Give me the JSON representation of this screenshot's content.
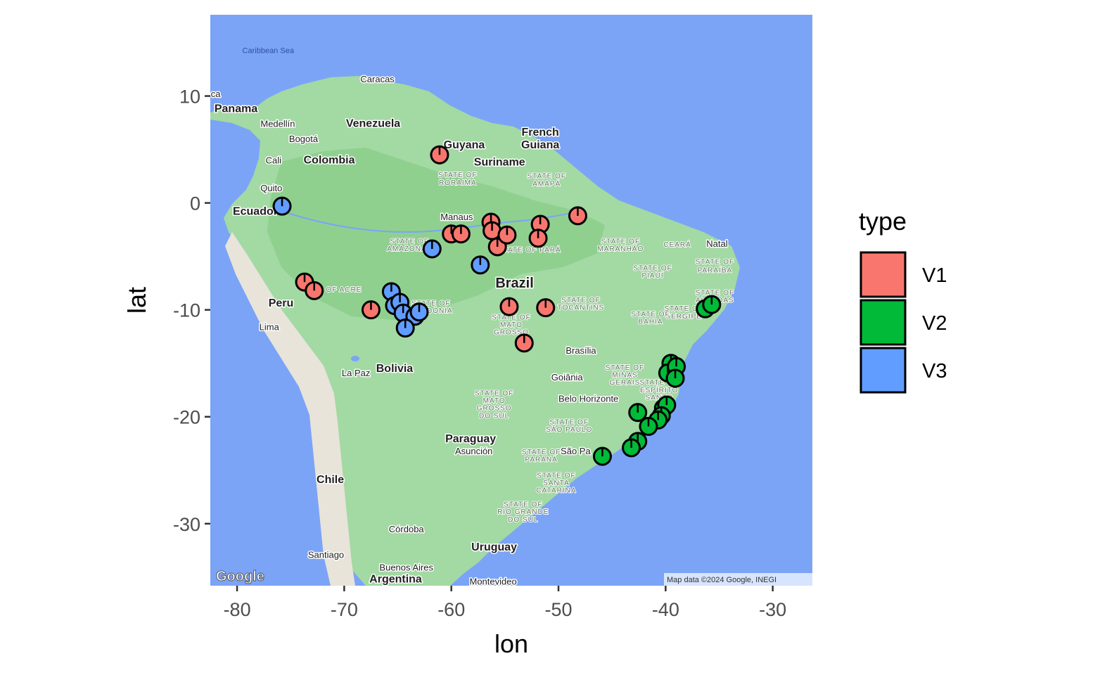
{
  "chart_data": {
    "type": "scatter",
    "subtype": "pie-markers-on-map",
    "xlabel": "lon",
    "ylabel": "lat",
    "xlim": [
      -82.5,
      -26.3
    ],
    "ylim": [
      -35.8,
      17.6
    ],
    "x_ticks": [
      -80,
      -70,
      -60,
      -50,
      -40,
      -30
    ],
    "y_ticks": [
      10,
      0,
      -10,
      -20,
      -30
    ],
    "legend": {
      "title": "type",
      "position": "right",
      "entries": [
        {
          "label": "V1",
          "color": "#F8766D"
        },
        {
          "label": "V2",
          "color": "#00BA38"
        },
        {
          "label": "V3",
          "color": "#619CFF"
        }
      ]
    },
    "points": [
      {
        "lon": -75.8,
        "lat": -0.3,
        "dominant": "V3"
      },
      {
        "lon": -61.1,
        "lat": 4.5,
        "dominant": "V1"
      },
      {
        "lon": -60.0,
        "lat": -2.9,
        "dominant": "V1"
      },
      {
        "lon": -59.1,
        "lat": -2.9,
        "dominant": "V1"
      },
      {
        "lon": -56.3,
        "lat": -1.8,
        "dominant": "V1"
      },
      {
        "lon": -56.2,
        "lat": -2.6,
        "dominant": "V1"
      },
      {
        "lon": -55.7,
        "lat": -4.1,
        "dominant": "V1"
      },
      {
        "lon": -54.8,
        "lat": -3.0,
        "dominant": "V1"
      },
      {
        "lon": -51.7,
        "lat": -2.0,
        "dominant": "V1"
      },
      {
        "lon": -51.9,
        "lat": -3.3,
        "dominant": "V1"
      },
      {
        "lon": -48.2,
        "lat": -1.2,
        "dominant": "V1"
      },
      {
        "lon": -61.8,
        "lat": -4.3,
        "dominant": "V3"
      },
      {
        "lon": -57.3,
        "lat": -5.8,
        "dominant": "V3"
      },
      {
        "lon": -73.7,
        "lat": -7.4,
        "dominant": "V1"
      },
      {
        "lon": -72.8,
        "lat": -8.2,
        "dominant": "V1"
      },
      {
        "lon": -67.5,
        "lat": -10.0,
        "dominant": "V1"
      },
      {
        "lon": -65.6,
        "lat": -8.3,
        "dominant": "V3"
      },
      {
        "lon": -65.3,
        "lat": -9.6,
        "dominant": "V3"
      },
      {
        "lon": -64.8,
        "lat": -9.3,
        "dominant": "V3"
      },
      {
        "lon": -64.5,
        "lat": -10.3,
        "dominant": "V3"
      },
      {
        "lon": -63.4,
        "lat": -10.6,
        "dominant": "V3"
      },
      {
        "lon": -63.0,
        "lat": -10.2,
        "dominant": "V3"
      },
      {
        "lon": -64.3,
        "lat": -11.7,
        "dominant": "V3"
      },
      {
        "lon": -54.6,
        "lat": -9.7,
        "dominant": "V1"
      },
      {
        "lon": -51.2,
        "lat": -9.8,
        "dominant": "V1"
      },
      {
        "lon": -53.2,
        "lat": -13.1,
        "dominant": "V1"
      },
      {
        "lon": -36.3,
        "lat": -9.9,
        "dominant": "V2"
      },
      {
        "lon": -35.7,
        "lat": -9.5,
        "dominant": "V2"
      },
      {
        "lon": -39.5,
        "lat": -15.0,
        "dominant": "V2"
      },
      {
        "lon": -39.8,
        "lat": -15.9,
        "dominant": "V2"
      },
      {
        "lon": -39.0,
        "lat": -15.3,
        "dominant": "V2"
      },
      {
        "lon": -39.1,
        "lat": -16.4,
        "dominant": "V2"
      },
      {
        "lon": -40.2,
        "lat": -19.2,
        "dominant": "V2"
      },
      {
        "lon": -39.9,
        "lat": -18.9,
        "dominant": "V2"
      },
      {
        "lon": -40.4,
        "lat": -19.9,
        "dominant": "V2"
      },
      {
        "lon": -40.7,
        "lat": -20.3,
        "dominant": "V2"
      },
      {
        "lon": -42.6,
        "lat": -19.6,
        "dominant": "V2"
      },
      {
        "lon": -41.6,
        "lat": -20.9,
        "dominant": "V2"
      },
      {
        "lon": -42.6,
        "lat": -22.3,
        "dominant": "V2"
      },
      {
        "lon": -43.2,
        "lat": -22.9,
        "dominant": "V2"
      },
      {
        "lon": -45.9,
        "lat": -23.7,
        "dominant": "V2"
      }
    ]
  },
  "map": {
    "ocean_color": "#7BA4F7",
    "land_color": "#A3D9A3",
    "forest_color": "#8FD08F",
    "andes_color": "#E8E4DA",
    "labels": [
      {
        "text": "Caribbean Sea",
        "lon": -77.1,
        "lat": 14.0,
        "kind": "water"
      },
      {
        "text": "Caracas",
        "lon": -66.9,
        "lat": 11.3,
        "kind": "city"
      },
      {
        "text": "ca",
        "lon": -82.0,
        "lat": 9.9,
        "kind": "city"
      },
      {
        "text": "Panama",
        "lon": -80.1,
        "lat": 8.5,
        "kind": "country"
      },
      {
        "text": "Medellín",
        "lon": -76.2,
        "lat": 7.1,
        "kind": "city"
      },
      {
        "text": "Venezuela",
        "lon": -67.3,
        "lat": 7.1,
        "kind": "country"
      },
      {
        "text": "French",
        "lon": -51.7,
        "lat": 6.3,
        "kind": "country"
      },
      {
        "text": "Bogotá",
        "lon": -73.8,
        "lat": 5.7,
        "kind": "city"
      },
      {
        "text": "Guyana",
        "lon": -58.8,
        "lat": 5.1,
        "kind": "country"
      },
      {
        "text": "Guiana",
        "lon": -51.7,
        "lat": 5.1,
        "kind": "country"
      },
      {
        "text": "Cali",
        "lon": -76.6,
        "lat": 3.7,
        "kind": "city"
      },
      {
        "text": "Colombia",
        "lon": -71.4,
        "lat": 3.7,
        "kind": "country"
      },
      {
        "text": "Suriname",
        "lon": -55.5,
        "lat": 3.5,
        "kind": "country"
      },
      {
        "text": "STATE OF",
        "lon": -59.4,
        "lat": 2.4,
        "kind": "state"
      },
      {
        "text": "RORAIMA",
        "lon": -59.4,
        "lat": 1.7,
        "kind": "state"
      },
      {
        "text": "STATE OF",
        "lon": -51.1,
        "lat": 2.3,
        "kind": "state"
      },
      {
        "text": "AMAPÁ",
        "lon": -51.1,
        "lat": 1.6,
        "kind": "state"
      },
      {
        "text": "Quito",
        "lon": -76.8,
        "lat": 1.1,
        "kind": "city"
      },
      {
        "text": "Ecuador",
        "lon": -78.3,
        "lat": -1.1,
        "kind": "country"
      },
      {
        "text": "Manaus",
        "lon": -59.5,
        "lat": -1.6,
        "kind": "city"
      },
      {
        "text": "STATE OF",
        "lon": -63.9,
        "lat": -3.8,
        "kind": "state"
      },
      {
        "text": "AMAZONAS",
        "lon": -63.9,
        "lat": -4.5,
        "kind": "state"
      },
      {
        "text": "STATE OF PARÁ",
        "lon": -52.7,
        "lat": -4.6,
        "kind": "state"
      },
      {
        "text": "STATE OF",
        "lon": -44.2,
        "lat": -3.8,
        "kind": "state"
      },
      {
        "text": "MARANHÃO",
        "lon": -44.2,
        "lat": -4.5,
        "kind": "state"
      },
      {
        "text": "CEARÁ",
        "lon": -38.9,
        "lat": -4.1,
        "kind": "state"
      },
      {
        "text": "Natal",
        "lon": -35.2,
        "lat": -4.1,
        "kind": "city"
      },
      {
        "text": "STATE OF",
        "lon": -35.4,
        "lat": -5.7,
        "kind": "state"
      },
      {
        "text": "PARAÍBA",
        "lon": -35.4,
        "lat": -6.5,
        "kind": "state"
      },
      {
        "text": "STATE OF",
        "lon": -41.2,
        "lat": -6.3,
        "kind": "state"
      },
      {
        "text": "PIAUÍ",
        "lon": -41.2,
        "lat": -7.0,
        "kind": "state"
      },
      {
        "text": "Brazil",
        "lon": -54.1,
        "lat": -7.9,
        "kind": "big"
      },
      {
        "text": "E OF ACRE",
        "lon": -70.4,
        "lat": -8.3,
        "kind": "state"
      },
      {
        "text": "STATE OF",
        "lon": -35.4,
        "lat": -8.6,
        "kind": "state"
      },
      {
        "text": "ALAGOAS",
        "lon": -35.4,
        "lat": -9.3,
        "kind": "state"
      },
      {
        "text": "Peru",
        "lon": -75.9,
        "lat": -9.7,
        "kind": "country"
      },
      {
        "text": "STATE OF",
        "lon": -61.9,
        "lat": -9.6,
        "kind": "state"
      },
      {
        "text": "RONDÔNIA",
        "lon": -61.9,
        "lat": -10.3,
        "kind": "state"
      },
      {
        "text": "STATE OF",
        "lon": -47.9,
        "lat": -9.3,
        "kind": "state"
      },
      {
        "text": "TOCANTINS",
        "lon": -47.9,
        "lat": -10.0,
        "kind": "state"
      },
      {
        "text": "STATE OF",
        "lon": -38.3,
        "lat": -10.1,
        "kind": "state"
      },
      {
        "text": "SERGIPE",
        "lon": -38.3,
        "lat": -10.8,
        "kind": "state"
      },
      {
        "text": "STATE OF",
        "lon": -41.4,
        "lat": -10.6,
        "kind": "state"
      },
      {
        "text": "BAHIA",
        "lon": -41.4,
        "lat": -11.3,
        "kind": "state"
      },
      {
        "text": "STATE OF",
        "lon": -54.4,
        "lat": -10.9,
        "kind": "state"
      },
      {
        "text": "MATO",
        "lon": -54.4,
        "lat": -11.6,
        "kind": "state"
      },
      {
        "text": "GROSSO",
        "lon": -54.4,
        "lat": -12.3,
        "kind": "state"
      },
      {
        "text": "Lima",
        "lon": -77.0,
        "lat": -11.9,
        "kind": "city"
      },
      {
        "text": "Brasília",
        "lon": -47.9,
        "lat": -14.1,
        "kind": "city"
      },
      {
        "text": "Bolivia",
        "lon": -65.3,
        "lat": -15.8,
        "kind": "country"
      },
      {
        "text": "La Paz",
        "lon": -68.9,
        "lat": -16.2,
        "kind": "city"
      },
      {
        "text": "STATE OF",
        "lon": -43.8,
        "lat": -15.6,
        "kind": "state"
      },
      {
        "text": "MINAS",
        "lon": -43.8,
        "lat": -16.3,
        "kind": "state"
      },
      {
        "text": "GERAIS",
        "lon": -43.8,
        "lat": -17.0,
        "kind": "state"
      },
      {
        "text": "Goiânia",
        "lon": -49.2,
        "lat": -16.6,
        "kind": "city"
      },
      {
        "text": "STATE OF",
        "lon": -40.6,
        "lat": -17.0,
        "kind": "state"
      },
      {
        "text": "ESPÍRITO",
        "lon": -40.6,
        "lat": -17.7,
        "kind": "state"
      },
      {
        "text": "SANTO",
        "lon": -40.6,
        "lat": -18.4,
        "kind": "state"
      },
      {
        "text": "STATE OF",
        "lon": -56.0,
        "lat": -18.0,
        "kind": "state"
      },
      {
        "text": "MATO",
        "lon": -56.0,
        "lat": -18.7,
        "kind": "state"
      },
      {
        "text": "GROSSO",
        "lon": -56.0,
        "lat": -19.4,
        "kind": "state"
      },
      {
        "text": "DO SUL",
        "lon": -56.0,
        "lat": -20.1,
        "kind": "state"
      },
      {
        "text": "Belo Horizonte",
        "lon": -47.2,
        "lat": -18.6,
        "kind": "city"
      },
      {
        "text": "STATE OF",
        "lon": -49.0,
        "lat": -20.7,
        "kind": "state"
      },
      {
        "text": "SÃO PAULO",
        "lon": -49.0,
        "lat": -21.4,
        "kind": "state"
      },
      {
        "text": "Paraguay",
        "lon": -58.2,
        "lat": -22.4,
        "kind": "country"
      },
      {
        "text": "Asunción",
        "lon": -57.9,
        "lat": -23.5,
        "kind": "city"
      },
      {
        "text": "STATE OF",
        "lon": -51.6,
        "lat": -23.5,
        "kind": "state"
      },
      {
        "text": "PARANÁ",
        "lon": -51.6,
        "lat": -24.2,
        "kind": "state"
      },
      {
        "text": "São Pa",
        "lon": -48.4,
        "lat": -23.5,
        "kind": "city"
      },
      {
        "text": "STATE OF",
        "lon": -50.2,
        "lat": -25.7,
        "kind": "state"
      },
      {
        "text": "SANTA",
        "lon": -50.2,
        "lat": -26.4,
        "kind": "state"
      },
      {
        "text": "CATARINA",
        "lon": -50.2,
        "lat": -27.1,
        "kind": "state"
      },
      {
        "text": "Chile",
        "lon": -71.3,
        "lat": -26.2,
        "kind": "country"
      },
      {
        "text": "STATE OF",
        "lon": -53.3,
        "lat": -28.4,
        "kind": "state"
      },
      {
        "text": "RIO GRANDE",
        "lon": -53.3,
        "lat": -29.1,
        "kind": "state"
      },
      {
        "text": "DO SUL",
        "lon": -53.3,
        "lat": -29.8,
        "kind": "state"
      },
      {
        "text": "Córdoba",
        "lon": -64.2,
        "lat": -30.8,
        "kind": "city"
      },
      {
        "text": "Uruguay",
        "lon": -56.0,
        "lat": -32.5,
        "kind": "country"
      },
      {
        "text": "Santiago",
        "lon": -71.7,
        "lat": -33.2,
        "kind": "city"
      },
      {
        "text": "Buenos Aires",
        "lon": -64.2,
        "lat": -34.4,
        "kind": "city"
      },
      {
        "text": "Argentina",
        "lon": -65.2,
        "lat": -35.5,
        "kind": "country"
      },
      {
        "text": "Montevideo",
        "lon": -56.1,
        "lat": -35.7,
        "kind": "city"
      }
    ],
    "attribution": "Map data ©2024 Google, INEGI",
    "logo": "Google"
  }
}
